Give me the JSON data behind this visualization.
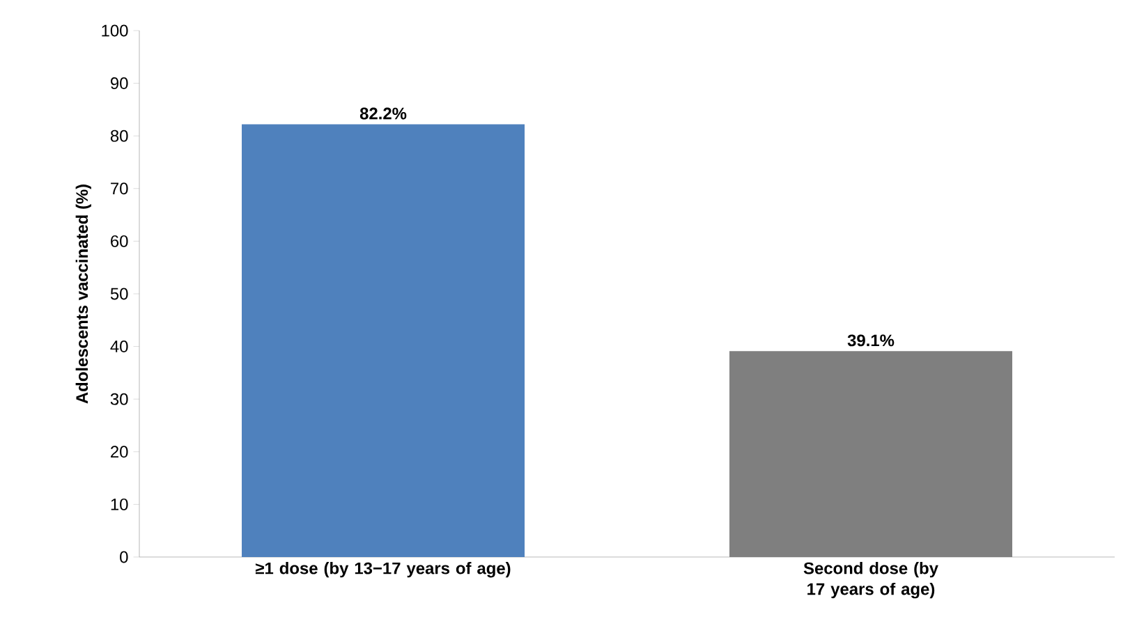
{
  "chart_data": {
    "type": "bar",
    "ylabel": "Adolescents vaccinated (%)",
    "categories": [
      "≥1 dose (by 13−17 years of age)",
      "Second dose (by 17 years of age)"
    ],
    "values": [
      82.2,
      39.1
    ],
    "colors": [
      "#4f81bd",
      "#7f7f7f"
    ],
    "value_labels": [
      "82.2%",
      "39.1%"
    ],
    "ylim": [
      0,
      100
    ],
    "yticks": [
      0,
      10,
      20,
      30,
      40,
      50,
      60,
      70,
      80,
      90,
      100
    ],
    "grid": false
  }
}
